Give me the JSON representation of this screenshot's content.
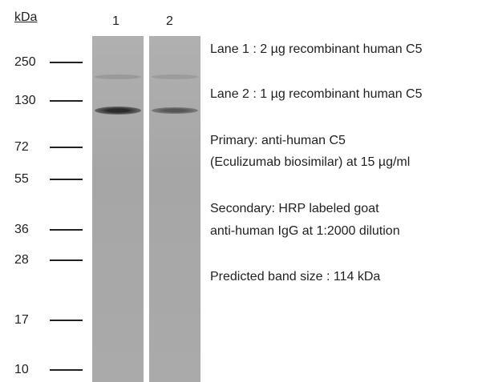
{
  "unit_label": "kDa",
  "lanes": [
    "1",
    "2"
  ],
  "markers": [
    "250",
    "130",
    "72",
    "55",
    "36",
    "28",
    "17",
    "10"
  ],
  "notes": [
    "Lane 1 : 2 µg recombinant human C5",
    "Lane 2 : 1 µg recombinant human C5",
    "Primary: anti-human C5",
    "(Eculizumab biosimilar) at 15 µg/ml",
    "Secondary: HRP labeled goat",
    "anti-human IgG at 1:2000 dilution",
    "Predicted band size : 114 kDa"
  ]
}
